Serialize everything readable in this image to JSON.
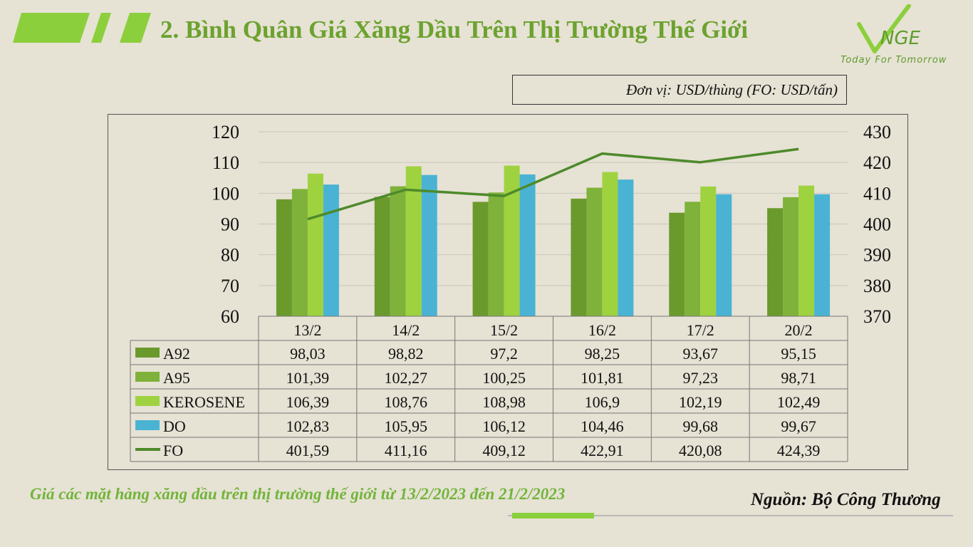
{
  "header": {
    "title": "2. Bình Quân Giá Xăng Dầu Trên Thị Trường Thế Giới",
    "logo_text": "Today For Tomorrow",
    "unit": "Đơn vị: USD/thùng (FO: USD/tấn)"
  },
  "footer": {
    "caption": "Giá các mặt hàng xăng dầu trên thị trường thế giới từ 13/2/2023 đến 21/2/2023",
    "source": "Nguồn: Bộ Công Thương"
  },
  "colors": {
    "A92": "#6b9a2c",
    "A95": "#7fb23a",
    "KEROSENE": "#9fd23f",
    "DO": "#4ab3d4",
    "FO": "#4d8a2a",
    "title": "#6ca22e"
  },
  "chart_data": {
    "type": "bar",
    "categories": [
      "13/2",
      "14/2",
      "15/2",
      "16/2",
      "17/2",
      "20/2"
    ],
    "series": [
      {
        "name": "A92",
        "type": "bar",
        "axis": "left",
        "values": [
          98.03,
          98.82,
          97.2,
          98.25,
          93.67,
          95.15
        ],
        "labels": [
          "98,03",
          "98,82",
          "97,2",
          "98,25",
          "93,67",
          "95,15"
        ]
      },
      {
        "name": "A95",
        "type": "bar",
        "axis": "left",
        "values": [
          101.39,
          102.27,
          100.25,
          101.81,
          97.23,
          98.71
        ],
        "labels": [
          "101,39",
          "102,27",
          "100,25",
          "101,81",
          "97,23",
          "98,71"
        ]
      },
      {
        "name": "KEROSENE",
        "type": "bar",
        "axis": "left",
        "values": [
          106.39,
          108.76,
          108.98,
          106.9,
          102.19,
          102.49
        ],
        "labels": [
          "106,39",
          "108,76",
          "108,98",
          "106,9",
          "102,19",
          "102,49"
        ]
      },
      {
        "name": "DO",
        "type": "bar",
        "axis": "left",
        "values": [
          102.83,
          105.95,
          106.12,
          104.46,
          99.68,
          99.67
        ],
        "labels": [
          "102,83",
          "105,95",
          "106,12",
          "104,46",
          "99,68",
          "99,67"
        ]
      },
      {
        "name": "FO",
        "type": "line",
        "axis": "right",
        "values": [
          401.59,
          411.16,
          409.12,
          422.91,
          420.08,
          424.39
        ],
        "labels": [
          "401,59",
          "411,16",
          "409,12",
          "422,91",
          "420,08",
          "424,39"
        ]
      }
    ],
    "ylim": [
      60,
      120
    ],
    "yticks": [
      60,
      70,
      80,
      90,
      100,
      110,
      120
    ],
    "y2lim": [
      370,
      430
    ],
    "y2ticks": [
      370,
      380,
      390,
      400,
      410,
      420,
      430
    ],
    "grid": true,
    "legend": "data-table"
  }
}
